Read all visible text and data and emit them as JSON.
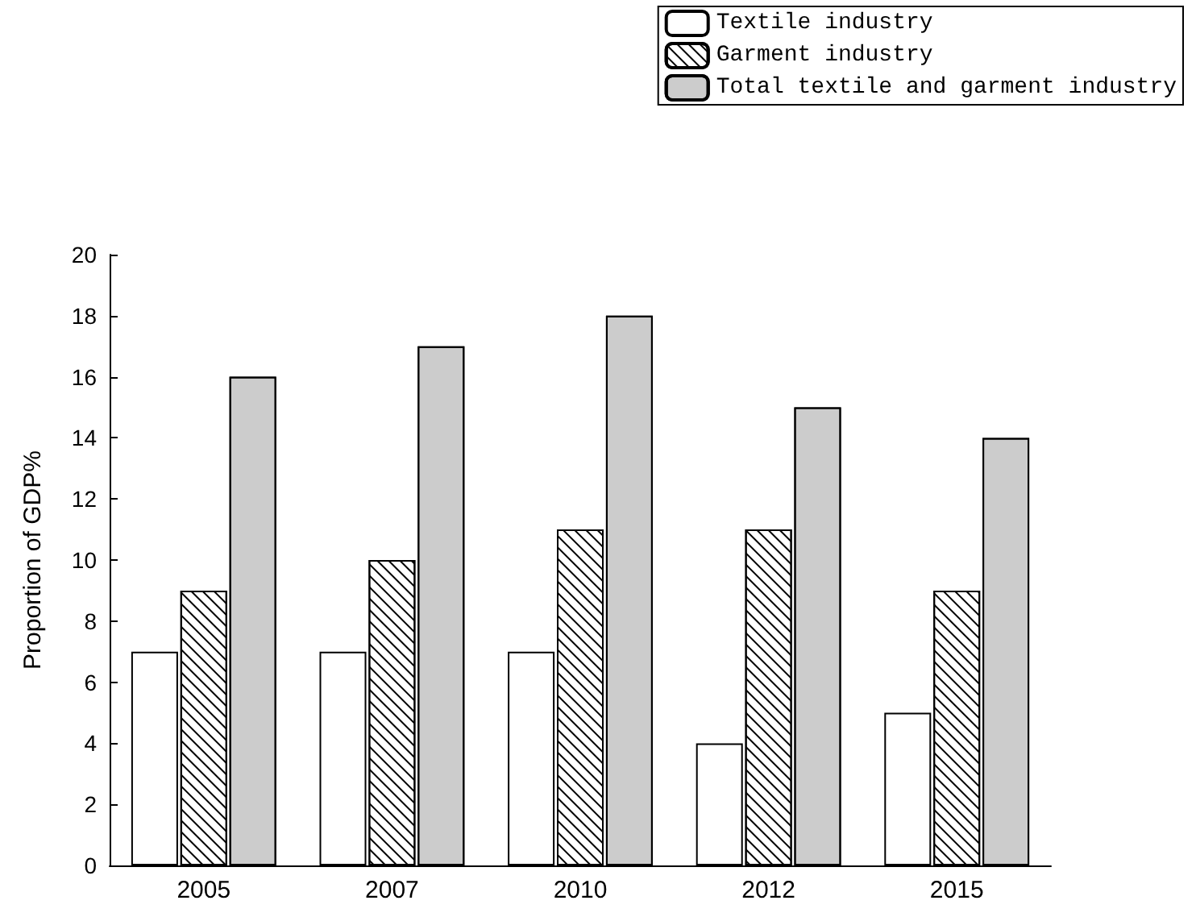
{
  "chart_data": {
    "type": "bar",
    "ylabel": "Proportion of GDP%",
    "categories": [
      "2005",
      "2007",
      "2010",
      "2012",
      "2015"
    ],
    "series": [
      {
        "name": "Textile industry",
        "color": "#ffffff",
        "values": [
          7,
          7,
          7,
          4,
          5
        ]
      },
      {
        "name": "Garment industry",
        "color": "#ffffff",
        "values": [
          9,
          10,
          11,
          11,
          9
        ]
      },
      {
        "name": "Total textile and garment industry",
        "color": "#cccccc",
        "values": [
          16,
          17,
          18,
          15,
          14
        ]
      }
    ],
    "ylim": [
      0,
      20
    ],
    "yticks": [
      0,
      2,
      4,
      6,
      8,
      10,
      12,
      14,
      16,
      18,
      20
    ],
    "grid": false,
    "legend": "top right"
  }
}
